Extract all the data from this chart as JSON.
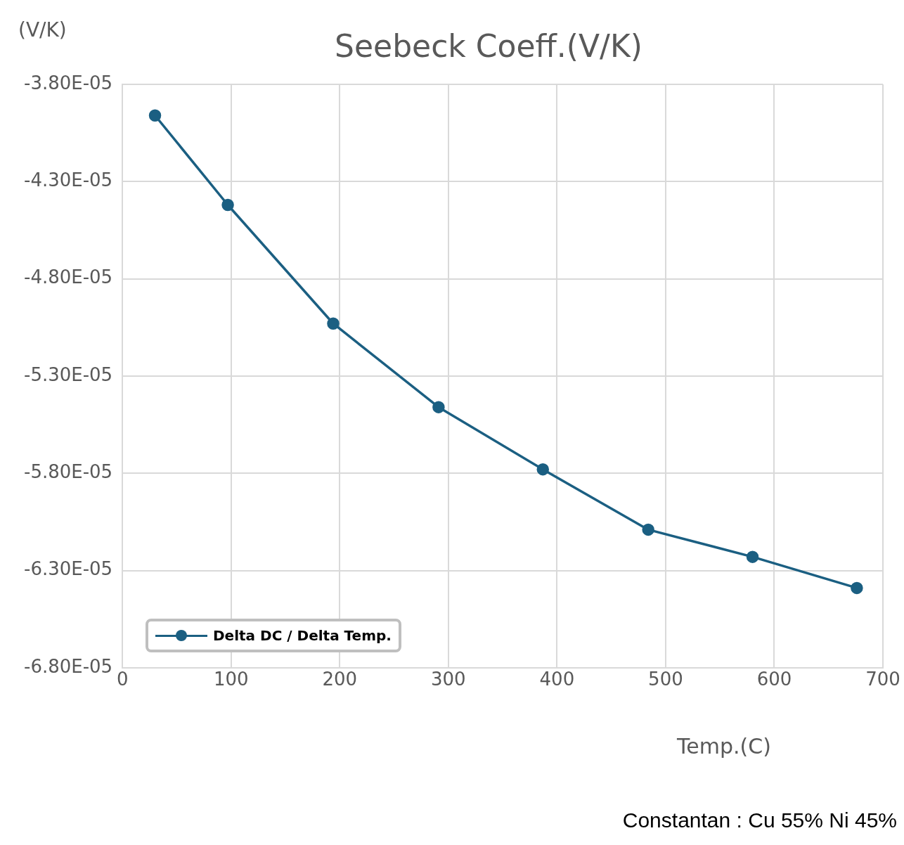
{
  "chart_data": {
    "type": "line",
    "title": "Seebeck Coeff.(V/K)",
    "xlabel": "Temp.(C)",
    "ylabel": "(V/K)",
    "annotations": [
      "Constantan : Cu 55% Ni 45%"
    ],
    "series": [
      {
        "name": "Delta DC / Delta Temp.",
        "color": "#1b5f82",
        "x": [
          30,
          97,
          194,
          291,
          387,
          484,
          580,
          676
        ],
        "values": [
          -3.96e-05,
          -4.42e-05,
          -5.03e-05,
          -5.46e-05,
          -5.78e-05,
          -6.09e-05,
          -6.23e-05,
          -6.39e-05
        ]
      }
    ],
    "xlim": [
      0,
      700
    ],
    "xticks": [
      0,
      100,
      200,
      300,
      400,
      500,
      600,
      700
    ],
    "ylim": [
      -6.8e-05,
      -3.8e-05
    ],
    "yticks": [
      {
        "value": -6.8e-05,
        "label": "-6.80E-05"
      },
      {
        "value": -6.3e-05,
        "label": "-6.30E-05"
      },
      {
        "value": -5.8e-05,
        "label": "-5.80E-05"
      },
      {
        "value": -5.3e-05,
        "label": "-5.30E-05"
      },
      {
        "value": -4.8e-05,
        "label": "-4.80E-05"
      },
      {
        "value": -4.3e-05,
        "label": "-4.30E-05"
      },
      {
        "value": -3.8e-05,
        "label": "-3.80E-05"
      }
    ],
    "grid": true,
    "legend": "bottom left",
    "marker": "circle",
    "line_style": "solid"
  }
}
